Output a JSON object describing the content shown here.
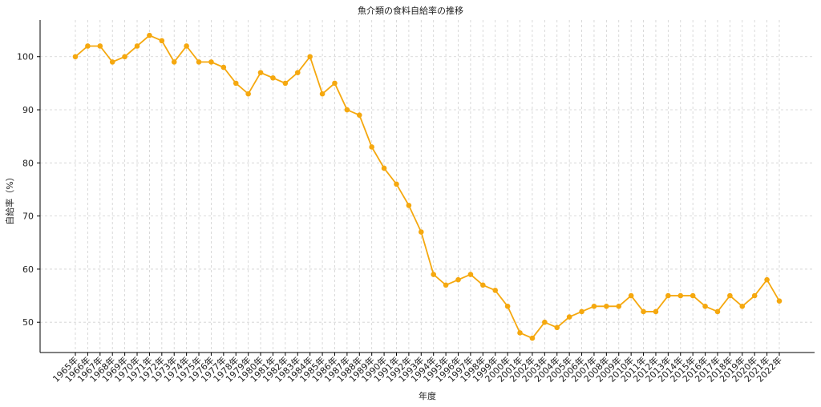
{
  "chart_data": {
    "type": "line",
    "title": "魚介類の食料自給率の推移",
    "x_label": "年度",
    "y_label": "自給率（%）",
    "categories": [
      "1965年",
      "1966年",
      "1967年",
      "1968年",
      "1969年",
      "1970年",
      "1971年",
      "1972年",
      "1973年",
      "1974年",
      "1975年",
      "1976年",
      "1977年",
      "1978年",
      "1979年",
      "1980年",
      "1981年",
      "1982年",
      "1983年",
      "1984年",
      "1985年",
      "1986年",
      "1987年",
      "1988年",
      "1989年",
      "1990年",
      "1991年",
      "1992年",
      "1993年",
      "1994年",
      "1995年",
      "1996年",
      "1997年",
      "1998年",
      "1999年",
      "2000年",
      "2001年",
      "2002年",
      "2003年",
      "2004年",
      "2005年",
      "2006年",
      "2007年",
      "2008年",
      "2009年",
      "2010年",
      "2011年",
      "2012年",
      "2013年",
      "2014年",
      "2015年",
      "2016年",
      "2017年",
      "2018年",
      "2019年",
      "2020年",
      "2021年",
      "2022年"
    ],
    "values": [
      100,
      102,
      102,
      99,
      100,
      102,
      104,
      103,
      99,
      102,
      99,
      99,
      98,
      95,
      93,
      97,
      96,
      95,
      97,
      100,
      93,
      95,
      90,
      89,
      83,
      79,
      76,
      72,
      67,
      59,
      57,
      58,
      59,
      57,
      56,
      53,
      48,
      47,
      50,
      49,
      51,
      52,
      53,
      53,
      53,
      55,
      52,
      52,
      55,
      55,
      55,
      53,
      52,
      55,
      53,
      55,
      58,
      54
    ],
    "color": "#f5a80f",
    "ylim": [
      44.3,
      106.9
    ],
    "yticks": [
      50,
      60,
      70,
      80,
      90,
      100
    ],
    "grid": true
  }
}
